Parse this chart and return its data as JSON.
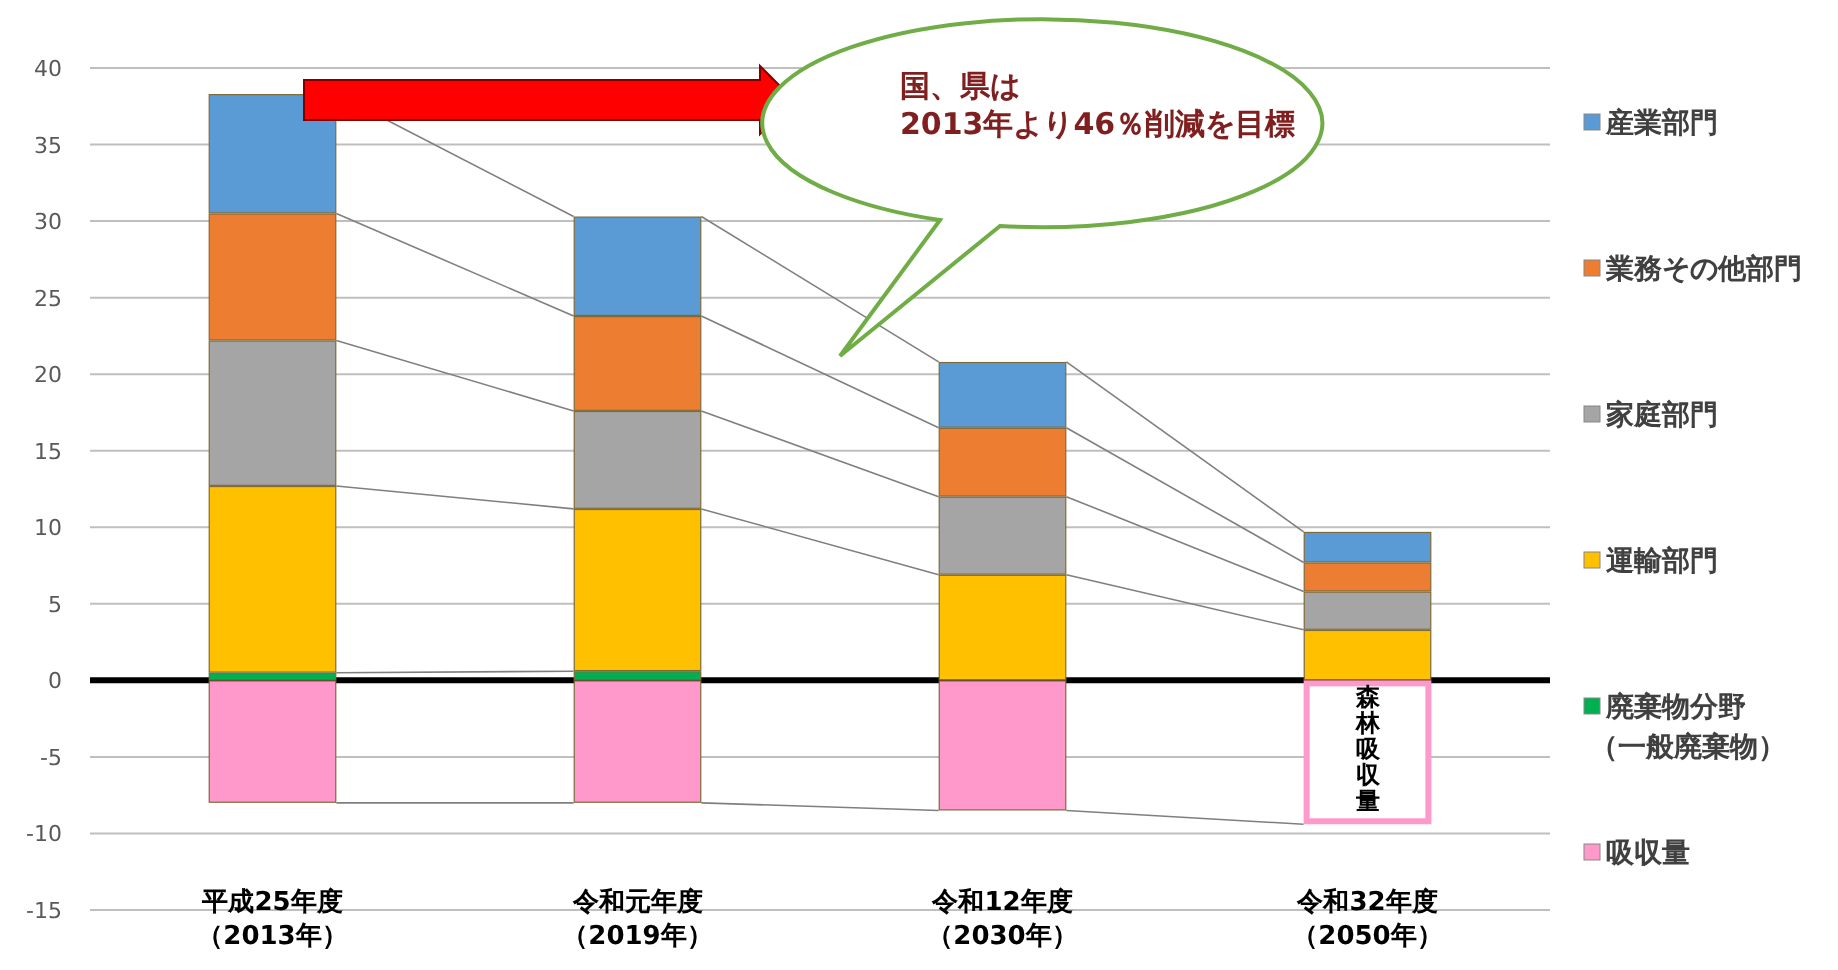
{
  "chart_data": {
    "type": "bar",
    "stacked": true,
    "categories": [
      "平成25年度（2013年）",
      "令和元年度（2019年）",
      "令和12年度（2030年）",
      "令和32年度（2050年）"
    ],
    "series": [
      {
        "name": "廃棄物分野（一般廃棄物）",
        "color": "#00b050",
        "values": [
          0.5,
          0.6,
          null,
          null
        ]
      },
      {
        "name": "運輸部門",
        "color": "#ffc000",
        "values": [
          12.2,
          10.6,
          6.9,
          3.3
        ]
      },
      {
        "name": "家庭部門",
        "color": "#a5a5a5",
        "values": [
          9.5,
          6.4,
          5.1,
          2.5
        ]
      },
      {
        "name": "業務その他部門",
        "color": "#ed7d31",
        "values": [
          8.3,
          6.2,
          4.5,
          1.9
        ]
      },
      {
        "name": "産業部門",
        "color": "#5b9bd5",
        "values": [
          7.8,
          6.5,
          4.3,
          2.0
        ]
      },
      {
        "name": "吸収量",
        "color": "#ff99cc",
        "colors": [
          "#ff99cc",
          "#ff99cc",
          "#ff99cc",
          "#ffffff"
        ],
        "values": [
          -8.0,
          -8.0,
          -8.5,
          -9.4
        ]
      }
    ],
    "ylim": [
      -15,
      40
    ],
    "yticks": [
      -15,
      -10,
      -5,
      0,
      5,
      10,
      15,
      20,
      25,
      30,
      35,
      40
    ],
    "grid": "y",
    "legend": "right",
    "ref_lines": [
      {
        "axis": "y",
        "value": 0,
        "color": "#000000"
      }
    ],
    "annotations": [
      "国、県は\n2013年より46％削減を目標",
      "森林吸収量"
    ]
  }
}
